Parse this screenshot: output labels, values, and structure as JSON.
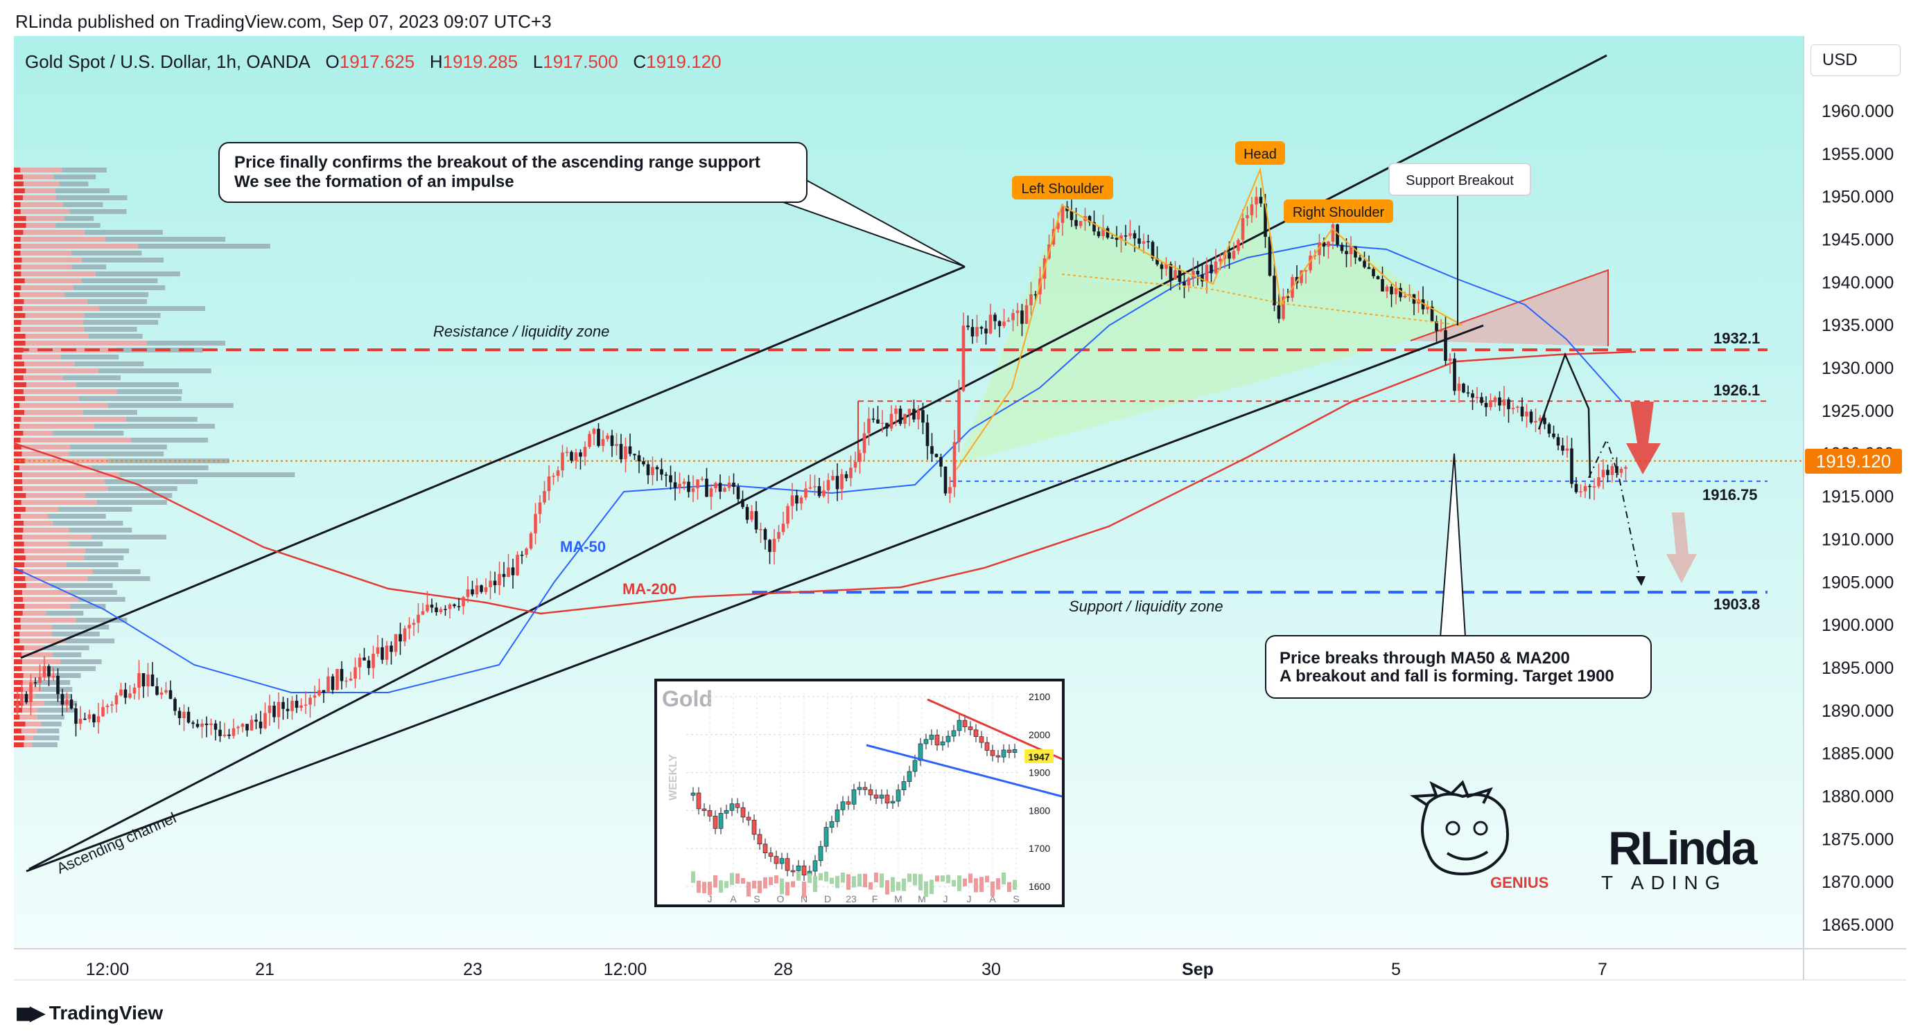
{
  "header": {
    "published": "RLinda published on TradingView.com, Sep 07, 2023 09:07 UTC+3",
    "symbol": "Gold Spot / U.S. Dollar, 1h, OANDA",
    "open_label": "O",
    "open": "1917.625",
    "high_label": "H",
    "high": "1919.285",
    "low_label": "L",
    "low": "1917.500",
    "close_label": "C",
    "close": "1919.120"
  },
  "currency_button": "USD",
  "current_price_tag": "1919.120",
  "footer_brand": "TradingView",
  "colors": {
    "bull": "#ef5350",
    "bear": "#131722",
    "ma50": "#2962ff",
    "ma200": "#e53935",
    "resistance": "#e53935",
    "support": "#2962ff",
    "accent": "#f57c00"
  },
  "chart_data": {
    "type": "candlestick",
    "title": "Gold Spot / U.S. Dollar, 1h, OANDA",
    "ylim": [
      1862,
      1964
    ],
    "y_ticks": [
      "1960.000",
      "1955.000",
      "1950.000",
      "1945.000",
      "1940.000",
      "1935.000",
      "1930.000",
      "1925.000",
      "1920.000",
      "1915.000",
      "1910.000",
      "1905.000",
      "1900.000",
      "1895.000",
      "1890.000",
      "1885.000",
      "1880.000",
      "1875.000",
      "1870.000",
      "1865.000"
    ],
    "x_ticks": [
      "12:00",
      "21",
      "23",
      "12:00",
      "28",
      "30",
      "Sep",
      "5",
      "7"
    ],
    "series": [
      {
        "name": "MA-50",
        "color": "#2962ff"
      },
      {
        "name": "MA-200",
        "color": "#e53935"
      }
    ],
    "levels": [
      {
        "value": 1932.1,
        "label": "1932.1",
        "style": "dashed",
        "color": "#e53935",
        "zone": "Resistance / liquidity zone"
      },
      {
        "value": 1926.1,
        "label": "1926.1",
        "style": "dashed-fine",
        "color": "#e53935"
      },
      {
        "value": 1916.75,
        "label": "1916.75",
        "style": "dashed-fine",
        "color": "#2962ff"
      },
      {
        "value": 1903.8,
        "label": "1903.8",
        "style": "dashed",
        "color": "#2962ff",
        "zone": "Support / liquidity zone"
      }
    ],
    "pattern_labels": [
      "Left Shoulder",
      "Head",
      "Right Shoulder"
    ],
    "annotations": [
      "Price finally confirms the breakout of the ascending range support",
      "We see the formation of an impulse",
      "Support Breakout",
      "Price breaks through MA50 & MA200",
      "A breakout and fall is forming. Target 1900",
      "Ascending channel"
    ],
    "inset": {
      "title": "Gold",
      "side_label": "WEEKLY",
      "price_tag": "1947",
      "y_ticks": [
        "2100",
        "2000",
        "1900",
        "1800",
        "1700",
        "1600"
      ],
      "x_ticks": [
        "J",
        "A",
        "S",
        "O",
        "N",
        "D",
        "23",
        "F",
        "M",
        "M",
        "J",
        "J",
        "A",
        "S"
      ]
    },
    "logos": {
      "genius": "GENIUS",
      "rlinda": "RLinda",
      "rlinda_sub": "T ADING"
    }
  }
}
